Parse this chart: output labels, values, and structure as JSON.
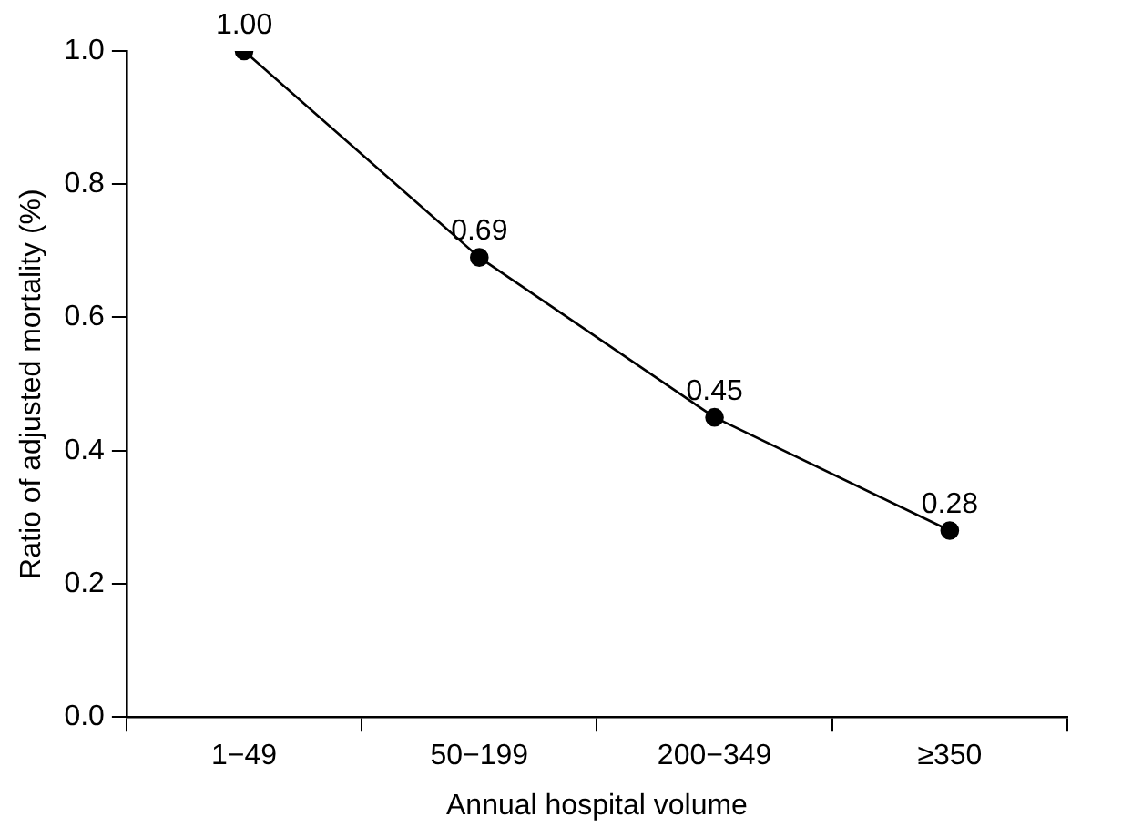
{
  "chart_data": {
    "type": "line",
    "xlabel": "Annual hospital volume",
    "ylabel": "Ratio of adjusted mortality (%)",
    "categories": [
      "1−49",
      "50−199",
      "200−349",
      "≥350"
    ],
    "series": [
      {
        "color": "#000000",
        "values": [
          1.0,
          0.69,
          0.45,
          0.28
        ]
      }
    ],
    "value_labels": [
      "1.00",
      "0.69",
      "0.45",
      "0.28"
    ],
    "ylim": [
      0,
      1.0
    ],
    "yticks": [
      {
        "value": 0,
        "label": "0.0"
      },
      {
        "value": 0.2,
        "label": "0.2"
      },
      {
        "value": 0.4,
        "label": "0.4"
      },
      {
        "value": 0.6,
        "label": "0.6"
      },
      {
        "value": 0.8,
        "label": "0.8"
      },
      {
        "value": 1.0,
        "label": "1.0"
      }
    ],
    "grid": false,
    "legend": false,
    "marker": "circle",
    "line_style": "solid"
  }
}
